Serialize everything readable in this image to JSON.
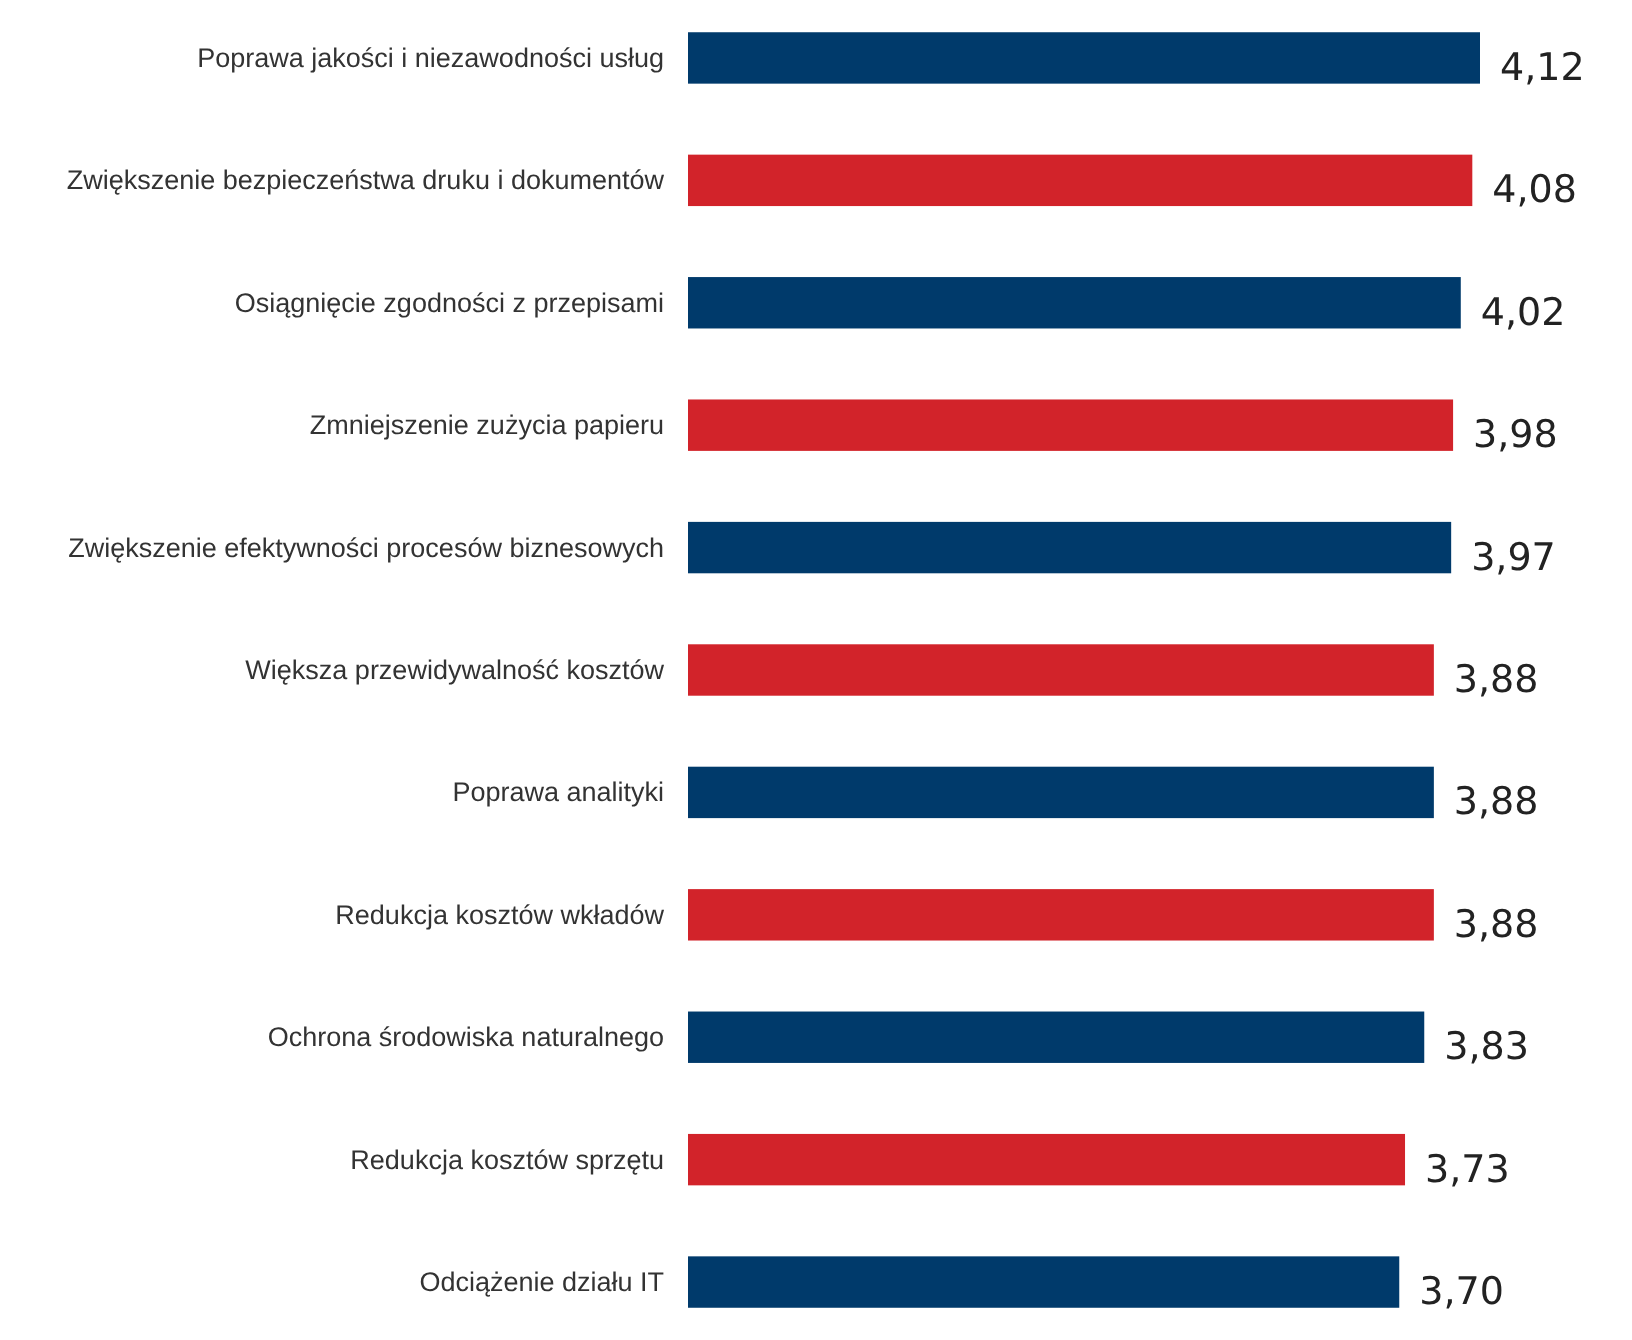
{
  "chart_data": {
    "type": "bar",
    "orientation": "horizontal",
    "data_labels": true,
    "categories": [
      "Poprawa jakości i niezawodności usług",
      "Zwiększenie bezpieczeństwa druku i dokumentów",
      "Osiągnięcie zgodności z przepisami",
      "Zmniejszenie zużycia papieru",
      "Zwiększenie efektywności procesów biznesowych",
      "Większa przewidywalność kosztów",
      "Poprawa analityki",
      "Redukcja kosztów wkładów",
      "Ochrona środowiska naturalnego",
      "Redukcja kosztów sprzętu",
      "Odciążenie działu IT"
    ],
    "values": [
      4.12,
      4.08,
      4.02,
      3.98,
      3.97,
      3.88,
      3.88,
      3.88,
      3.83,
      3.73,
      3.7
    ],
    "value_labels": [
      "4,12",
      "4,08",
      "4,02",
      "3,98",
      "3,97",
      "3,88",
      "3,88",
      "3,88",
      "3,83",
      "3,73",
      "3,70"
    ],
    "colors": [
      "#003a6b",
      "#d2232a",
      "#003a6b",
      "#d2232a",
      "#003a6b",
      "#d2232a",
      "#003a6b",
      "#d2232a",
      "#003a6b",
      "#d2232a",
      "#003a6b"
    ]
  }
}
